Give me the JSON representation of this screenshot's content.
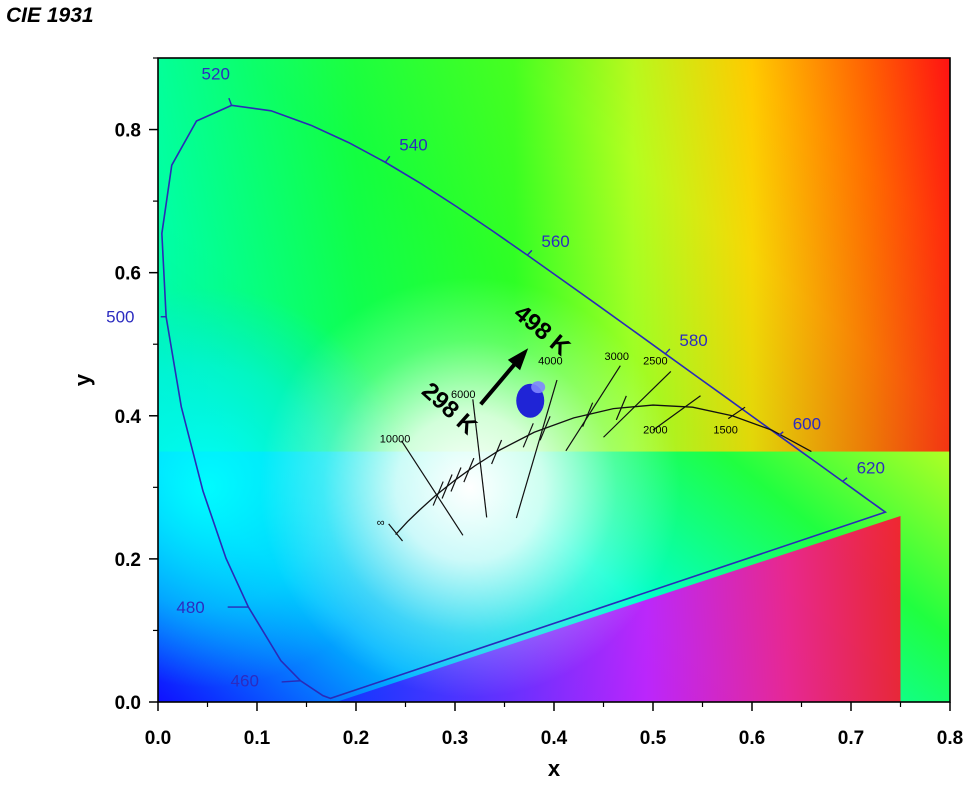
{
  "title": "CIE 1931",
  "chart_data": {
    "type": "scatter",
    "title": "CIE 1931",
    "xlabel": "x",
    "ylabel": "y",
    "xlim": [
      0.0,
      0.8
    ],
    "ylim": [
      0.0,
      0.9
    ],
    "x_ticks": [
      "0.0",
      "0.1",
      "0.2",
      "0.3",
      "0.4",
      "0.5",
      "0.6",
      "0.7",
      "0.8"
    ],
    "y_ticks": [
      "0.0",
      "0.2",
      "0.4",
      "0.6",
      "0.8"
    ],
    "x_tick_values": [
      0.0,
      0.1,
      0.2,
      0.3,
      0.4,
      0.5,
      0.6,
      0.7,
      0.8
    ],
    "y_tick_values": [
      0.0,
      0.2,
      0.4,
      0.6,
      0.8
    ],
    "spectral_locus": [
      [
        0.1741,
        0.005
      ],
      [
        0.1666,
        0.0089
      ],
      [
        0.144,
        0.0297
      ],
      [
        0.1241,
        0.0578
      ],
      [
        0.0913,
        0.1327
      ],
      [
        0.0687,
        0.2007
      ],
      [
        0.0454,
        0.295
      ],
      [
        0.0235,
        0.4127
      ],
      [
        0.0082,
        0.5384
      ],
      [
        0.0039,
        0.6548
      ],
      [
        0.0139,
        0.7502
      ],
      [
        0.0389,
        0.812
      ],
      [
        0.0743,
        0.8338
      ],
      [
        0.1142,
        0.8262
      ],
      [
        0.1547,
        0.8059
      ],
      [
        0.1929,
        0.7816
      ],
      [
        0.2296,
        0.7543
      ],
      [
        0.2658,
        0.7243
      ],
      [
        0.3016,
        0.6923
      ],
      [
        0.3373,
        0.6589
      ],
      [
        0.3731,
        0.6245
      ],
      [
        0.4087,
        0.5896
      ],
      [
        0.4441,
        0.5547
      ],
      [
        0.4788,
        0.5202
      ],
      [
        0.5125,
        0.4866
      ],
      [
        0.5448,
        0.4544
      ],
      [
        0.5752,
        0.4242
      ],
      [
        0.6029,
        0.3965
      ],
      [
        0.627,
        0.3725
      ],
      [
        0.6482,
        0.3514
      ],
      [
        0.6658,
        0.334
      ],
      [
        0.6801,
        0.3197
      ],
      [
        0.6915,
        0.3083
      ],
      [
        0.7006,
        0.2993
      ],
      [
        0.7079,
        0.292
      ],
      [
        0.714,
        0.2859
      ],
      [
        0.719,
        0.2809
      ],
      [
        0.723,
        0.277
      ],
      [
        0.726,
        0.274
      ],
      [
        0.7283,
        0.2717
      ],
      [
        0.73,
        0.27
      ],
      [
        0.7347,
        0.2653
      ]
    ],
    "wavelength_labels": [
      {
        "text": "460",
        "x": 0.144,
        "y": 0.0297
      },
      {
        "text": "480",
        "x": 0.0913,
        "y": 0.1327
      },
      {
        "text": "500",
        "x": 0.0082,
        "y": 0.5384
      },
      {
        "text": "520",
        "x": 0.0743,
        "y": 0.8338
      },
      {
        "text": "540",
        "x": 0.2296,
        "y": 0.7543
      },
      {
        "text": "560",
        "x": 0.3731,
        "y": 0.6245
      },
      {
        "text": "580",
        "x": 0.5125,
        "y": 0.4866
      },
      {
        "text": "600",
        "x": 0.627,
        "y": 0.3725
      },
      {
        "text": "620",
        "x": 0.6915,
        "y": 0.3083
      }
    ],
    "planckian_locus": [
      [
        0.24,
        0.234
      ],
      [
        0.252,
        0.252
      ],
      [
        0.264,
        0.268
      ],
      [
        0.28,
        0.288
      ],
      [
        0.3,
        0.31
      ],
      [
        0.32,
        0.33
      ],
      [
        0.345,
        0.352
      ],
      [
        0.38,
        0.377
      ],
      [
        0.42,
        0.397
      ],
      [
        0.46,
        0.41
      ],
      [
        0.5,
        0.415
      ],
      [
        0.54,
        0.412
      ],
      [
        0.58,
        0.4
      ],
      [
        0.62,
        0.38
      ],
      [
        0.66,
        0.35
      ]
    ],
    "isotherms": [
      {
        "label": "∞",
        "x1": 0.247,
        "y1": 0.225,
        "x2": 0.233,
        "y2": 0.249
      },
      {
        "label": "10000",
        "x1": 0.308,
        "y1": 0.233,
        "x2": 0.246,
        "y2": 0.365
      },
      {
        "label": "6000",
        "x1": 0.332,
        "y1": 0.258,
        "x2": 0.318,
        "y2": 0.423
      },
      {
        "label": "4000",
        "x1": 0.362,
        "y1": 0.257,
        "x2": 0.403,
        "y2": 0.45
      },
      {
        "label": "3000",
        "x1": 0.412,
        "y1": 0.351,
        "x2": 0.467,
        "y2": 0.47
      },
      {
        "label": "2500",
        "x1": 0.45,
        "y1": 0.37,
        "x2": 0.518,
        "y2": 0.462
      },
      {
        "label": "2000",
        "x1": 0.5,
        "y1": 0.38,
        "x2": 0.548,
        "y2": 0.428
      },
      {
        "label": "1500",
        "x1": 0.576,
        "y1": 0.396,
        "x2": 0.593,
        "y2": 0.412
      }
    ],
    "isotherm_ticks_x": [
      0.283,
      0.292,
      0.301,
      0.314,
      0.342,
      0.374,
      0.391,
      0.434,
      0.468
    ],
    "cct_labels": [
      {
        "text": "10000",
        "x": 0.224,
        "y": 0.363
      },
      {
        "text": "6000",
        "x": 0.296,
        "y": 0.425
      },
      {
        "text": "4000",
        "x": 0.384,
        "y": 0.472
      },
      {
        "text": "3000",
        "x": 0.451,
        "y": 0.478
      },
      {
        "text": "2500",
        "x": 0.49,
        "y": 0.472
      },
      {
        "text": "2000",
        "x": 0.49,
        "y": 0.375
      },
      {
        "text": "1500",
        "x": 0.561,
        "y": 0.375
      },
      {
        "text": "∞",
        "x": 0.221,
        "y": 0.246
      }
    ],
    "series": [
      {
        "name": "sample",
        "points": [
          {
            "x": 0.376,
            "y": 0.421,
            "color": "#1f24d6"
          },
          {
            "x": 0.384,
            "y": 0.44,
            "color": "#7f86ff"
          }
        ]
      }
    ],
    "temp_labels": [
      {
        "text": "298 K",
        "x": 0.265,
        "y": 0.432,
        "rotate": 42
      },
      {
        "text": "498 K",
        "x": 0.358,
        "y": 0.54,
        "rotate": 40
      }
    ],
    "arrow": {
      "from": [
        0.326,
        0.416
      ],
      "to": [
        0.37,
        0.488
      ]
    },
    "grid": false
  }
}
